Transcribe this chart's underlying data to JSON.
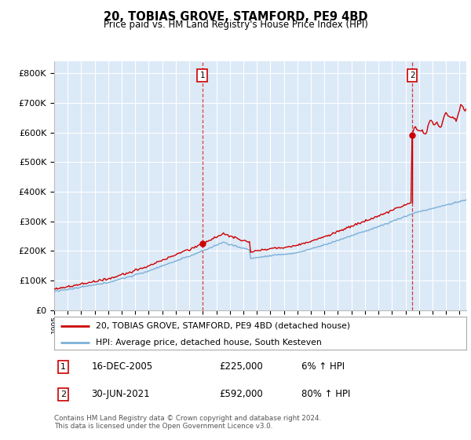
{
  "title": "20, TOBIAS GROVE, STAMFORD, PE9 4BD",
  "subtitle": "Price paid vs. HM Land Registry's House Price Index (HPI)",
  "ytick_values": [
    0,
    100000,
    200000,
    300000,
    400000,
    500000,
    600000,
    700000,
    800000
  ],
  "ylim": [
    0,
    840000
  ],
  "xlim_start": 1995.0,
  "xlim_end": 2025.5,
  "background_color": "#dce9f7",
  "grid_color": "#ffffff",
  "hpi_color": "#7ab0d8",
  "price_color": "#cc0000",
  "sale1_x": 2005.96,
  "sale1_y": 225000,
  "sale1_label": "1",
  "sale1_date": "16-DEC-2005",
  "sale1_price": "£225,000",
  "sale1_hpi": "6% ↑ HPI",
  "sale2_x": 2021.5,
  "sale2_y": 592000,
  "sale2_label": "2",
  "sale2_date": "30-JUN-2021",
  "sale2_price": "£592,000",
  "sale2_hpi": "80% ↑ HPI",
  "legend_line1": "20, TOBIAS GROVE, STAMFORD, PE9 4BD (detached house)",
  "legend_line2": "HPI: Average price, detached house, South Kesteven",
  "footer": "Contains HM Land Registry data © Crown copyright and database right 2024.\nThis data is licensed under the Open Government Licence v3.0."
}
